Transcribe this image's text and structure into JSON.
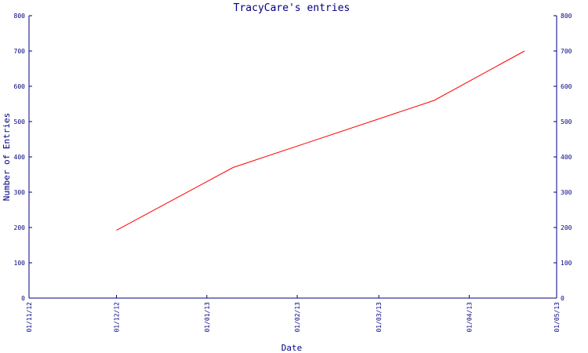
{
  "chart_data": {
    "type": "line",
    "title": "TracyCare's entries",
    "xlabel": "Date",
    "ylabel": "Number of Entries",
    "x_tick_labels": [
      "01/11/12",
      "01/12/12",
      "01/01/13",
      "01/02/13",
      "01/03/13",
      "01/04/13",
      "01/05/13"
    ],
    "x_tick_dates": [
      "2012-11-01",
      "2012-12-01",
      "2013-01-01",
      "2013-02-01",
      "2013-03-01",
      "2013-04-01",
      "2013-05-01"
    ],
    "y_ticks": [
      0,
      100,
      200,
      300,
      400,
      500,
      600,
      700,
      800
    ],
    "y_tick_labels_left": [
      "0",
      "100",
      "200",
      "300",
      "400",
      "500",
      "600",
      "700",
      "800"
    ],
    "y_tick_labels_right": [
      "0",
      "100",
      "200",
      "300",
      "400",
      "500",
      "600",
      "700",
      "800"
    ],
    "xlim": [
      "2012-11-01",
      "2013-05-01"
    ],
    "ylim": [
      0,
      800
    ],
    "grid": false,
    "legend": "none",
    "series": [
      {
        "x": [
          "2012-12-01",
          "2013-01-10",
          "2013-03-20",
          "2013-04-20"
        ],
        "values": [
          192,
          370,
          560,
          700
        ]
      }
    ],
    "colors": {
      "line": "#ff0000",
      "axis": "#000080",
      "text": "#000080"
    }
  }
}
